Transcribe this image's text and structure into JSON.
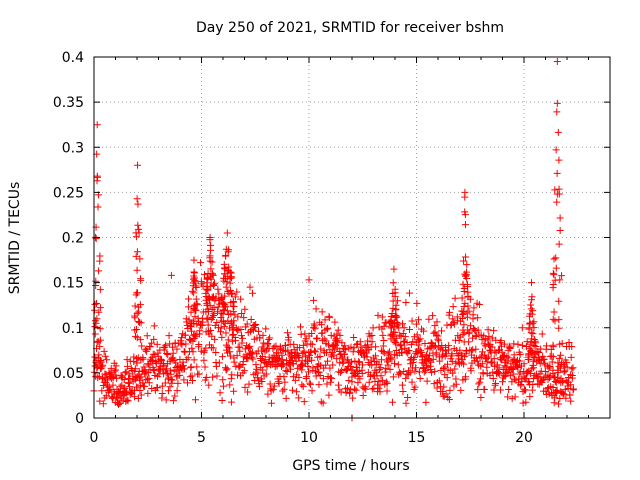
{
  "chart_data": {
    "type": "scatter",
    "title": "Day 250 of 2021, SRMTID for receiver bshm",
    "xlabel": "GPS time / hours",
    "ylabel": "SRMTID / TECUs",
    "xlim": [
      0,
      24
    ],
    "ylim": [
      0,
      0.4
    ],
    "xticks": [
      0,
      5,
      10,
      15,
      20
    ],
    "yticks": [
      0,
      0.05,
      0.1,
      0.15,
      0.2,
      0.25,
      0.3,
      0.35,
      0.4
    ],
    "ytick_labels": [
      "0",
      "0.05",
      "0.1",
      "0.15",
      "0.2",
      "0.25",
      "0.3",
      "0.35",
      "0.4"
    ],
    "xtick_labels": [
      "0",
      "5",
      "10",
      "15",
      "20"
    ],
    "grid": true,
    "marker": "+",
    "series": [
      {
        "name": "SRMTID",
        "color": "#ff0000",
        "baseline": [
          [
            0.0,
            0.06
          ],
          [
            0.5,
            0.05
          ],
          [
            0.8,
            0.035
          ],
          [
            1.2,
            0.03
          ],
          [
            1.6,
            0.04
          ],
          [
            2.0,
            0.05
          ],
          [
            2.5,
            0.06
          ],
          [
            3.0,
            0.06
          ],
          [
            3.5,
            0.06
          ],
          [
            4.0,
            0.065
          ],
          [
            4.5,
            0.08
          ],
          [
            5.0,
            0.1
          ],
          [
            5.5,
            0.11
          ],
          [
            6.0,
            0.1
          ],
          [
            6.5,
            0.09
          ],
          [
            7.0,
            0.085
          ],
          [
            7.5,
            0.075
          ],
          [
            8.0,
            0.065
          ],
          [
            8.5,
            0.055
          ],
          [
            9.0,
            0.055
          ],
          [
            9.5,
            0.06
          ],
          [
            10.0,
            0.07
          ],
          [
            10.5,
            0.075
          ],
          [
            11.0,
            0.07
          ],
          [
            11.5,
            0.065
          ],
          [
            12.0,
            0.055
          ],
          [
            12.5,
            0.06
          ],
          [
            13.0,
            0.065
          ],
          [
            13.5,
            0.07
          ],
          [
            14.0,
            0.08
          ],
          [
            14.5,
            0.075
          ],
          [
            15.0,
            0.07
          ],
          [
            15.5,
            0.065
          ],
          [
            16.0,
            0.07
          ],
          [
            16.5,
            0.075
          ],
          [
            17.0,
            0.085
          ],
          [
            17.5,
            0.09
          ],
          [
            18.0,
            0.075
          ],
          [
            18.5,
            0.065
          ],
          [
            19.0,
            0.055
          ],
          [
            19.5,
            0.05
          ],
          [
            20.0,
            0.055
          ],
          [
            20.5,
            0.06
          ],
          [
            21.0,
            0.05
          ],
          [
            21.5,
            0.04
          ],
          [
            22.0,
            0.06
          ],
          [
            22.3,
            0.05
          ]
        ],
        "spikes": [
          {
            "x": [
              0.0,
              0.3
            ],
            "y_max": 0.325
          },
          {
            "x": [
              1.85,
              2.2
            ],
            "y_max": 0.28
          },
          {
            "x": [
              4.5,
              4.8
            ],
            "y_max": 0.175
          },
          {
            "x": [
              5.2,
              5.6
            ],
            "y_max": 0.2
          },
          {
            "x": [
              5.9,
              6.5
            ],
            "y_max": 0.205
          },
          {
            "x": [
              13.8,
              14.1
            ],
            "y_max": 0.165
          },
          {
            "x": [
              17.1,
              17.4
            ],
            "y_max": 0.25
          },
          {
            "x": [
              20.2,
              20.5
            ],
            "y_max": 0.15
          },
          {
            "x": [
              21.35,
              21.75
            ],
            "y_max": 0.395
          }
        ],
        "outliers": [
          [
            12.0,
            0.0
          ],
          [
            3.6,
            0.158
          ],
          [
            10.0,
            0.153
          ]
        ],
        "x_range": [
          0.0,
          22.3
        ],
        "sample_count": 1500
      }
    ]
  }
}
